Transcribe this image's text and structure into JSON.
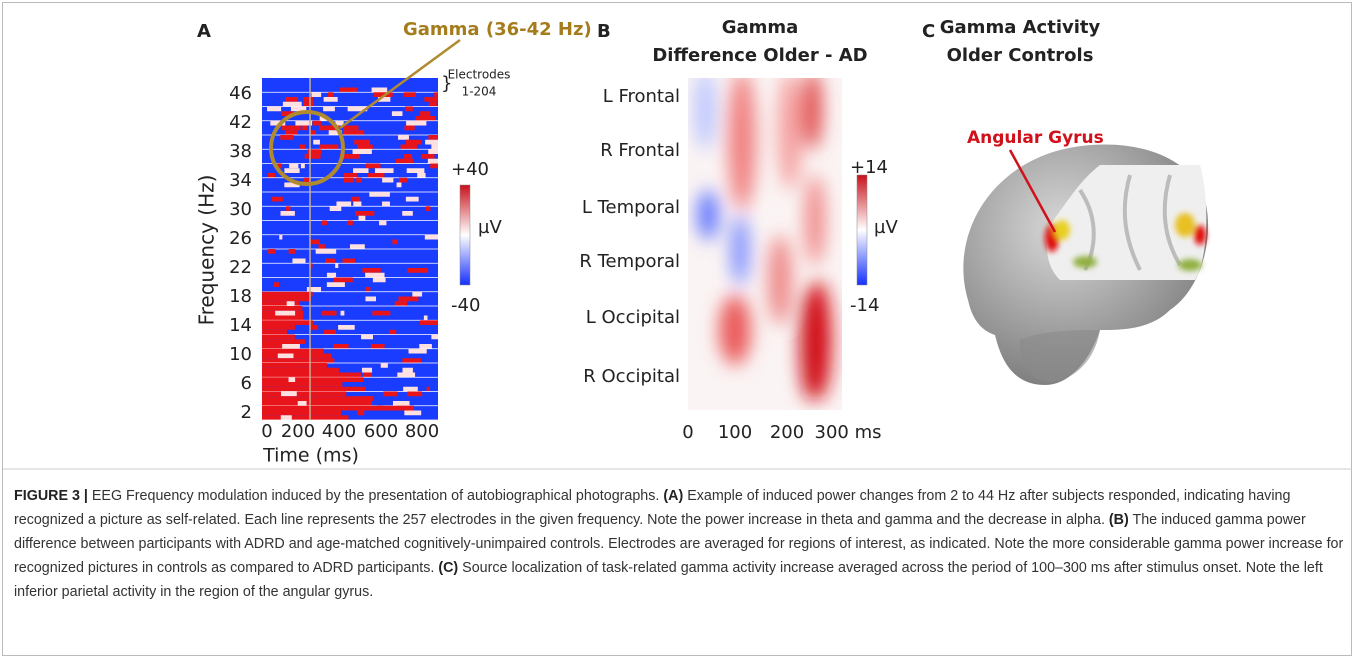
{
  "panel_a": {
    "label": "A",
    "annotation": "Gamma (36-42 Hz)",
    "bracket": "}",
    "electrodes": [
      "Electrodes",
      "1-204"
    ],
    "y_axis_title": "Frequency (Hz)",
    "y_ticks": [
      "46",
      "42",
      "38",
      "34",
      "30",
      "26",
      "22",
      "18",
      "14",
      "10",
      "6",
      "2"
    ],
    "x_ticks": [
      "0",
      "200",
      "400",
      "600",
      "800"
    ],
    "x_axis_title": "Time (ms)",
    "colorbar": {
      "max": "+40",
      "unit": "µV",
      "min": "-40"
    }
  },
  "panel_b": {
    "label": "B",
    "title": [
      "Gamma",
      "Difference Older - AD"
    ],
    "rows": [
      "L Frontal",
      "R Frontal",
      "L Temporal",
      "R Temporal",
      "L Occipital",
      "R Occipital"
    ],
    "x_ticks": [
      "0",
      "100",
      "200",
      "300 ms"
    ],
    "colorbar": {
      "max": "+14",
      "unit": "µV",
      "min": "-14"
    }
  },
  "panel_c": {
    "label": "C",
    "title": [
      "Gamma Activity",
      "Older Controls"
    ],
    "annotation": "Angular Gyrus"
  },
  "caption": [
    "FIGURE 3 |",
    " EEG Frequency modulation induced by the presentation of autobiographical photographs. ",
    "(A)",
    " Example of induced power changes from 2 to 44 Hz after subjects responded, indicating having recognized a picture as self-related. Each line represents the 257 electrodes in the given frequency. Note the power increase in theta and gamma and the decrease in alpha. ",
    "(B)",
    " The induced gamma power difference between participants with ADRD and age-matched cognitively-unimpaired controls. Electrodes are averaged for regions of interest, as indicated. Note the more considerable gamma power increase for recognized pictures in controls as compared to ADRD participants. ",
    "(C)",
    " Source localization of task-related gamma activity increase averaged across the period of 100–300 ms after stimulus onset. Note the left inferior parietal activity in the region of the angular gyrus."
  ]
}
